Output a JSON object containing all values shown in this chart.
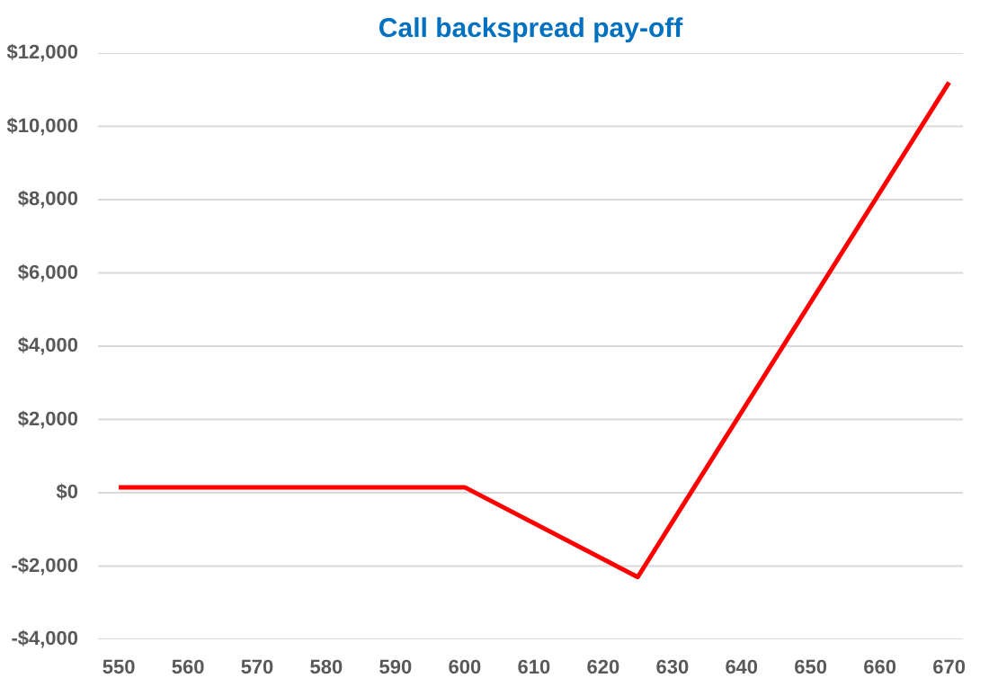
{
  "chart_data": {
    "type": "line",
    "title": "Call backspread pay-off",
    "x": [
      550,
      600,
      625,
      670
    ],
    "series": [
      {
        "color": "#ff0000",
        "values": [
          150,
          150,
          -2300,
          11200
        ]
      }
    ],
    "xlim": [
      547,
      672
    ],
    "xticks": [
      550,
      560,
      570,
      580,
      590,
      600,
      610,
      620,
      630,
      640,
      650,
      660,
      670
    ],
    "ylim": [
      -4000,
      12000
    ],
    "yticks": [
      {
        "value": -4000,
        "label": "-$4,000"
      },
      {
        "value": -2000,
        "label": "-$2,000"
      },
      {
        "value": 0,
        "label": "$0"
      },
      {
        "value": 2000,
        "label": "$2,000"
      },
      {
        "value": 4000,
        "label": "$4,000"
      },
      {
        "value": 6000,
        "label": "$6,000"
      },
      {
        "value": 8000,
        "label": "$8,000"
      },
      {
        "value": 10000,
        "label": "$10,000"
      },
      {
        "value": 12000,
        "label": "$12,000"
      }
    ],
    "grid": "y",
    "marker": "none",
    "line_style": "solid"
  }
}
